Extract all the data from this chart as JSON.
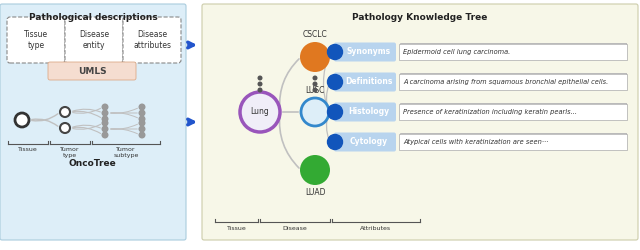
{
  "fig_width": 6.4,
  "fig_height": 2.5,
  "dpi": 100,
  "left_panel_bg": "#ddeef8",
  "right_panel_bg": "#f7f7e8",
  "left_title": "Pathological descriptions",
  "right_title": "Pathology Knowledge Tree",
  "boxes": [
    "Tissue\ntype",
    "Disease\nentity",
    "Disease\nattributes"
  ],
  "umls_label": "UMLS",
  "umls_bg": "#f5ddd0",
  "oncotree_label": "OncoTree",
  "tissue_label": "Tissue",
  "tumor_type_label": "Tumor\ntype",
  "tumor_subtype_label": "Tumor\nsubtype",
  "nodes_lung": "Lung",
  "nodes_csclc": "CSCLC",
  "nodes_lusc": "LUSC",
  "nodes_luad": "LUAD",
  "lung_color": "#9955bb",
  "csclc_color": "#e07820",
  "lusc_color": "#3388cc",
  "luad_color": "#33aa33",
  "attr_pill_bg": "#b8d4ee",
  "attr_dot_color": "#1155bb",
  "attr_labels": [
    "Synonyms",
    "Definitions",
    "Histology",
    "Cytology"
  ],
  "attr_text": [
    "Epidermoid cell lung carcinoma.",
    "A carcinoma arising from squamous bronchial epithelial cells.",
    "Presence of keratinization including keratin pearls...",
    "Atypical cells with keratinization are seen···"
  ],
  "gray_node_color": "#999999",
  "tree_line_color": "#c0c0c0",
  "arrow_color": "#2255cc",
  "panel_border_left": "#aaccdd",
  "panel_border_right": "#ccccaa"
}
